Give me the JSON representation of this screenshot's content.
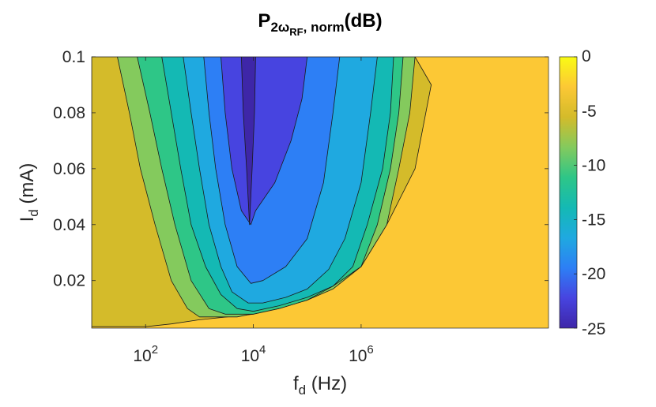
{
  "chart_data": {
    "type": "heatmap",
    "subtype": "filled-contour",
    "title": {
      "main": "P",
      "sub1": "2",
      "omega": "ω",
      "sub2": "RF",
      "mid": ", norm",
      "tail": "(dB)"
    },
    "xlabel": {
      "main": "f",
      "sub": "d",
      "tail": " (Hz)"
    },
    "ylabel": {
      "main": "I",
      "sub": "d",
      "tail": " (mA)"
    },
    "x_scale": "log",
    "x_range": [
      10,
      3000000000
    ],
    "y_range": [
      0.003,
      0.1
    ],
    "x_ticks": [
      {
        "value": 100,
        "base": "10",
        "exp": "2"
      },
      {
        "value": 10000,
        "base": "10",
        "exp": "4"
      },
      {
        "value": 1000000,
        "base": "10",
        "exp": "6"
      }
    ],
    "y_ticks": [
      {
        "value": 0.02,
        "label": "0.02"
      },
      {
        "value": 0.04,
        "label": "0.04"
      },
      {
        "value": 0.06,
        "label": "0.06"
      },
      {
        "value": 0.08,
        "label": "0.08"
      },
      {
        "value": 0.1,
        "label": "0.1"
      }
    ],
    "colorbar": {
      "range": [
        -25,
        0
      ],
      "ticks": [
        {
          "value": 0,
          "label": "0"
        },
        {
          "value": -5,
          "label": "-5"
        },
        {
          "value": -10,
          "label": "-10"
        },
        {
          "value": -15,
          "label": "-15"
        },
        {
          "value": -20,
          "label": "-20"
        },
        {
          "value": -25,
          "label": "-25"
        }
      ],
      "colors": [
        "#3e26a8",
        "#4744e0",
        "#2d7ff5",
        "#1fa9e0",
        "#14b9b4",
        "#2ec687",
        "#84ca5d",
        "#d4bb2a",
        "#fcc835",
        "#f9fb14"
      ]
    },
    "contour_levels": [
      {
        "level": -3.5,
        "color": "#fcc835"
      },
      {
        "level": -6,
        "color": "#d4bb2a"
      },
      {
        "level": -9,
        "color": "#84ca5d"
      },
      {
        "level": -12,
        "color": "#2ec687"
      },
      {
        "level": -15,
        "color": "#14b9b4"
      },
      {
        "level": -18,
        "color": "#1fa9e0"
      },
      {
        "level": -21,
        "color": "#2d7ff5"
      },
      {
        "level": -23,
        "color": "#4744e0"
      },
      {
        "level": -24.5,
        "color": "#3e26a8"
      }
    ],
    "regions": [
      {
        "color": "#d4bb2a",
        "points": [
          [
            10,
            0.0035
          ],
          [
            10,
            0.1
          ],
          [
            10000000,
            0.1
          ],
          [
            20000000,
            0.09
          ],
          [
            10000000,
            0.06
          ],
          [
            3000000,
            0.04
          ],
          [
            1000000,
            0.025
          ],
          [
            300000,
            0.018
          ],
          [
            100000,
            0.013
          ],
          [
            10000,
            0.008
          ],
          [
            1000,
            0.006
          ],
          [
            300,
            0.0045
          ],
          [
            100,
            0.0035
          ]
        ]
      },
      {
        "color": "#84ca5d",
        "points": [
          [
            30,
            0.1
          ],
          [
            50,
            0.08
          ],
          [
            80,
            0.06
          ],
          [
            150,
            0.04
          ],
          [
            300,
            0.02
          ],
          [
            600,
            0.01
          ],
          [
            1000,
            0.007
          ],
          [
            5000,
            0.007
          ],
          [
            30000,
            0.01
          ],
          [
            100000,
            0.013
          ],
          [
            300000,
            0.017
          ],
          [
            1000000,
            0.025
          ],
          [
            3000000,
            0.04
          ],
          [
            5000000,
            0.06
          ],
          [
            8000000,
            0.08
          ],
          [
            10000000,
            0.1
          ]
        ]
      },
      {
        "color": "#2ec687",
        "points": [
          [
            70,
            0.1
          ],
          [
            120,
            0.08
          ],
          [
            200,
            0.06
          ],
          [
            350,
            0.04
          ],
          [
            700,
            0.02
          ],
          [
            1500,
            0.01
          ],
          [
            3000,
            0.008
          ],
          [
            10000,
            0.008
          ],
          [
            30000,
            0.01
          ],
          [
            100000,
            0.013
          ],
          [
            300000,
            0.018
          ],
          [
            1000000,
            0.025
          ],
          [
            2000000,
            0.04
          ],
          [
            3500000,
            0.06
          ],
          [
            5000000,
            0.08
          ],
          [
            6000000,
            0.1
          ]
        ]
      },
      {
        "color": "#14b9b4",
        "points": [
          [
            200,
            0.1
          ],
          [
            300,
            0.08
          ],
          [
            450,
            0.06
          ],
          [
            700,
            0.04
          ],
          [
            1300,
            0.025
          ],
          [
            2500,
            0.015
          ],
          [
            5000,
            0.01
          ],
          [
            10000,
            0.009
          ],
          [
            30000,
            0.011
          ],
          [
            100000,
            0.014
          ],
          [
            300000,
            0.018
          ],
          [
            700000,
            0.025
          ],
          [
            1300000,
            0.04
          ],
          [
            2500000,
            0.06
          ],
          [
            3500000,
            0.08
          ],
          [
            4000000,
            0.1
          ]
        ]
      },
      {
        "color": "#1fa9e0",
        "points": [
          [
            500,
            0.1
          ],
          [
            700,
            0.08
          ],
          [
            1000,
            0.06
          ],
          [
            1500,
            0.04
          ],
          [
            2500,
            0.025
          ],
          [
            4000,
            0.016
          ],
          [
            8000,
            0.012
          ],
          [
            15000,
            0.012
          ],
          [
            40000,
            0.014
          ],
          [
            100000,
            0.017
          ],
          [
            250000,
            0.024
          ],
          [
            500000,
            0.035
          ],
          [
            1000000,
            0.055
          ],
          [
            1500000,
            0.08
          ],
          [
            2000000,
            0.1
          ]
        ]
      },
      {
        "color": "#2d7ff5",
        "points": [
          [
            1200,
            0.1
          ],
          [
            1500,
            0.08
          ],
          [
            2000,
            0.06
          ],
          [
            3000,
            0.04
          ],
          [
            5000,
            0.025
          ],
          [
            9000,
            0.019
          ],
          [
            15000,
            0.02
          ],
          [
            40000,
            0.025
          ],
          [
            100000,
            0.035
          ],
          [
            200000,
            0.055
          ],
          [
            300000,
            0.08
          ],
          [
            400000,
            0.1
          ]
        ]
      },
      {
        "color": "#4744e0",
        "points": [
          [
            2500,
            0.1
          ],
          [
            3000,
            0.08
          ],
          [
            4000,
            0.06
          ],
          [
            6000,
            0.045
          ],
          [
            9000,
            0.04
          ],
          [
            11000,
            0.045
          ],
          [
            25000,
            0.055
          ],
          [
            50000,
            0.07
          ],
          [
            80000,
            0.085
          ],
          [
            100000,
            0.1
          ]
        ]
      },
      {
        "color": "#3e26a8",
        "points": [
          [
            6000,
            0.1
          ],
          [
            6500,
            0.08
          ],
          [
            7500,
            0.06
          ],
          [
            8500,
            0.04
          ],
          [
            9500,
            0.06
          ],
          [
            10500,
            0.08
          ],
          [
            11000,
            0.1
          ]
        ]
      }
    ]
  }
}
